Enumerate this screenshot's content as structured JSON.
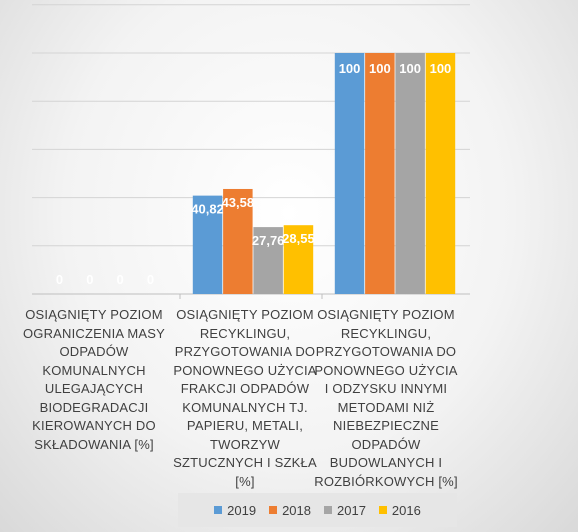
{
  "chart_data": {
    "type": "bar",
    "categories": [
      "OSIĄGNIĘTY POZIOM OGRANICZENIA MASY ODPADÓW KOMUNALNYCH ULEGAJĄCYCH BIODEGRADACJI KIEROWANYCH DO SKŁADOWANIA [%]",
      "OSIĄGNIĘTY POZIOM RECYKLINGU, PRZYGOTOWANIA DO PONOWNEGO UŻYCIA FRAKCJI ODPADÓW KOMUNALNYCH TJ. PAPIERU, METALI, TWORZYW SZTUCZNYCH I SZKŁA [%]",
      "OSIĄGNIĘTY POZIOM RECYKLINGU, PRZYGOTOWANIA DO PONOWNEGO UŻYCIA I ODZYSKU INNYMI METODAMI NIŻ NIEBEZPIECZNE ODPADÓW BUDOWLANYCH I ROZBIÓRKOWYCH [%]"
    ],
    "category_lines": [
      [
        "OSIĄGNIĘTY POZIOM",
        "OGRANICZENIA MASY",
        "ODPADÓW",
        "KOMUNALNYCH",
        "ULEGAJĄCYCH",
        "BIODEGRADACJI",
        "KIEROWANYCH DO",
        "SKŁADOWANIA [%]"
      ],
      [
        "OSIĄGNIĘTY POZIOM",
        "RECYKLINGU,",
        "PRZYGOTOWANIA DO",
        "PONOWNEGO UŻYCIA",
        "FRAKCJI ODPADÓW",
        "KOMUNALNYCH TJ.",
        "PAPIERU, METALI,",
        "TWORZYW",
        "SZTUCZNYCH I SZKŁA",
        "[%]"
      ],
      [
        "OSIĄGNIĘTY POZIOM",
        "RECYKLINGU,",
        "PRZYGOTOWANIA DO",
        "PONOWNEGO UŻYCIA",
        "I ODZYSKU INNYMI",
        "METODAMI NIŻ",
        "NIEBEZPIECZNE",
        "ODPADÓW",
        "BUDOWLANYCH I",
        "ROZBIÓRKOWYCH [%]"
      ]
    ],
    "series": [
      {
        "name": "2019",
        "color": "#5b9bd5",
        "values": [
          0,
          40.82,
          100
        ],
        "labels": [
          "0",
          "40,82",
          "100"
        ]
      },
      {
        "name": "2018",
        "color": "#ed7d31",
        "values": [
          0,
          43.58,
          100
        ],
        "labels": [
          "0",
          "43,58",
          "100"
        ]
      },
      {
        "name": "2017",
        "color": "#a5a5a5",
        "values": [
          0,
          27.76,
          100
        ],
        "labels": [
          "0",
          "27,76",
          "100"
        ]
      },
      {
        "name": "2016",
        "color": "#ffc000",
        "values": [
          0,
          28.55,
          100
        ],
        "labels": [
          "0",
          "28,55",
          "100"
        ]
      }
    ],
    "ylim": [
      0,
      120
    ],
    "y_step": 20,
    "grid": true,
    "legend": "bottom"
  }
}
